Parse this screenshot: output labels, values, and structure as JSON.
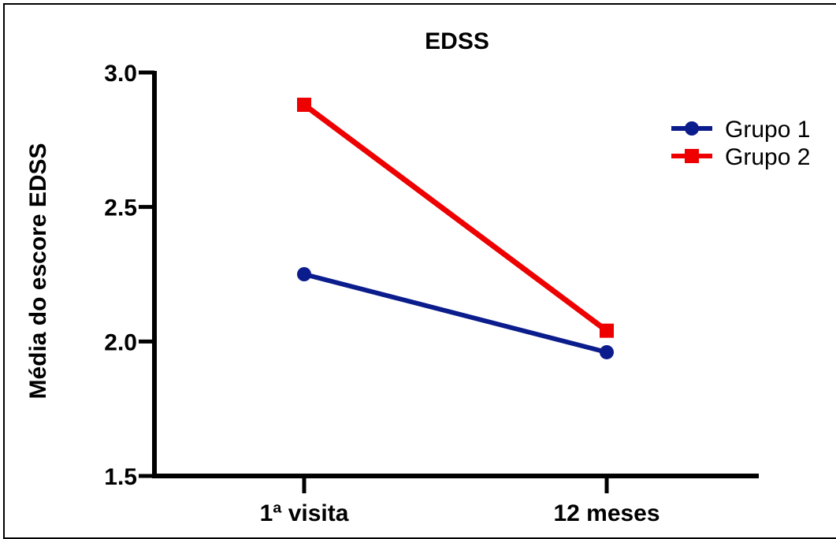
{
  "chart_data": {
    "type": "line",
    "title": "EDSS",
    "ylabel": "Média do escore EDSS",
    "xlabel": "",
    "categories": [
      "1ª visita",
      "12 meses"
    ],
    "ylim": [
      1.5,
      3.0
    ],
    "yticks": [
      "1.5",
      "2.0",
      "2.5",
      "3.0"
    ],
    "ytick_values": [
      1.5,
      2.0,
      2.5,
      3.0
    ],
    "legend_position": "top-right",
    "grid": false,
    "series": [
      {
        "name": "Grupo 1",
        "values": [
          2.25,
          1.96
        ],
        "color": "#0b1c8c",
        "marker": "circle"
      },
      {
        "name": "Grupo 2",
        "values": [
          2.88,
          2.04
        ],
        "color": "#ee0000",
        "marker": "square"
      }
    ]
  }
}
